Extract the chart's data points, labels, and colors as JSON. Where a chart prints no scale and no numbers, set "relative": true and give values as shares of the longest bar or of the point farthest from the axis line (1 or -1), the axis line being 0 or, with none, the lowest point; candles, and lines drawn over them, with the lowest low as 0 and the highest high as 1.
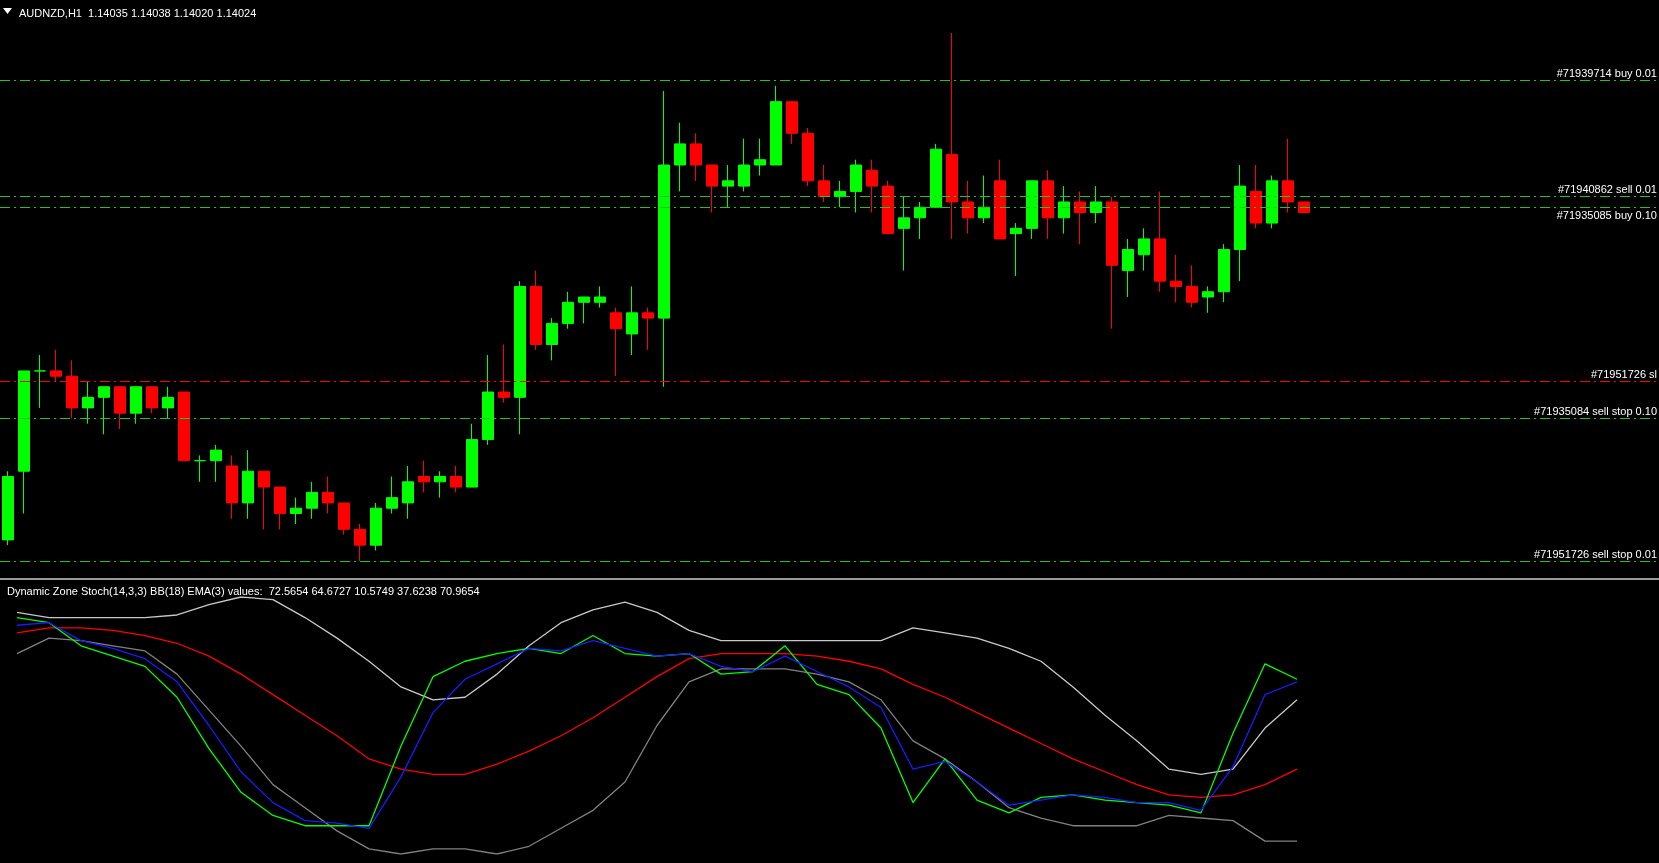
{
  "chart_data": [
    {
      "type": "candlestick",
      "title": "AUDNZD,H1  1.14035 1.14038 1.14020 1.14024",
      "relative": true,
      "categories": [
        null,
        null,
        null,
        null,
        null,
        null,
        null,
        null,
        null,
        null,
        null,
        null,
        null,
        null,
        null,
        null,
        null,
        null,
        null,
        null,
        null,
        null,
        null,
        null,
        null,
        null,
        null,
        null,
        null,
        null,
        null,
        null,
        null,
        null,
        null,
        null,
        null,
        null,
        null,
        null,
        null,
        null,
        null,
        null,
        null,
        null,
        null,
        null,
        null,
        null,
        null,
        null,
        null,
        null,
        null,
        null,
        null,
        null,
        null,
        null,
        null,
        null,
        null,
        null,
        null,
        null,
        null,
        null,
        null,
        null,
        null,
        null,
        null,
        null,
        null,
        null,
        null,
        null,
        null,
        null,
        null,
        null
      ],
      "ohlc": [
        [
          0.04,
          0.17,
          0.03,
          0.16
        ],
        [
          0.17,
          0.36,
          0.09,
          0.36
        ],
        [
          0.36,
          0.39,
          0.29,
          0.36
        ],
        [
          0.36,
          0.4,
          0.34,
          0.35
        ],
        [
          0.35,
          0.38,
          0.27,
          0.29
        ],
        [
          0.29,
          0.34,
          0.26,
          0.31
        ],
        [
          0.31,
          0.33,
          0.24,
          0.33
        ],
        [
          0.33,
          0.33,
          0.25,
          0.28
        ],
        [
          0.28,
          0.33,
          0.26,
          0.33
        ],
        [
          0.33,
          0.33,
          0.28,
          0.29
        ],
        [
          0.29,
          0.33,
          0.27,
          0.31
        ],
        [
          0.32,
          0.32,
          0.19,
          0.19
        ],
        [
          0.19,
          0.2,
          0.15,
          0.19
        ],
        [
          0.19,
          0.22,
          0.15,
          0.21
        ],
        [
          0.18,
          0.2,
          0.08,
          0.11
        ],
        [
          0.11,
          0.21,
          0.08,
          0.17
        ],
        [
          0.17,
          0.17,
          0.06,
          0.14
        ],
        [
          0.14,
          0.14,
          0.06,
          0.09
        ],
        [
          0.09,
          0.12,
          0.07,
          0.1
        ],
        [
          0.1,
          0.15,
          0.08,
          0.13
        ],
        [
          0.13,
          0.16,
          0.09,
          0.11
        ],
        [
          0.11,
          0.11,
          0.05,
          0.06
        ],
        [
          0.06,
          0.07,
          0.0,
          0.03
        ],
        [
          0.03,
          0.11,
          0.02,
          0.1
        ],
        [
          0.1,
          0.16,
          0.09,
          0.12
        ],
        [
          0.11,
          0.18,
          0.08,
          0.15
        ],
        [
          0.16,
          0.19,
          0.13,
          0.15
        ],
        [
          0.15,
          0.17,
          0.12,
          0.16
        ],
        [
          0.16,
          0.18,
          0.13,
          0.14
        ],
        [
          0.14,
          0.26,
          0.14,
          0.23
        ],
        [
          0.23,
          0.39,
          0.22,
          0.32
        ],
        [
          0.32,
          0.41,
          0.3,
          0.31
        ],
        [
          0.31,
          0.53,
          0.24,
          0.52
        ],
        [
          0.52,
          0.55,
          0.4,
          0.41
        ],
        [
          0.41,
          0.46,
          0.38,
          0.45
        ],
        [
          0.45,
          0.51,
          0.44,
          0.49
        ],
        [
          0.49,
          0.5,
          0.45,
          0.5
        ],
        [
          0.49,
          0.52,
          0.48,
          0.5
        ],
        [
          0.47,
          0.48,
          0.35,
          0.44
        ],
        [
          0.43,
          0.52,
          0.39,
          0.47
        ],
        [
          0.47,
          0.48,
          0.4,
          0.46
        ],
        [
          0.46,
          0.89,
          0.33,
          0.75
        ],
        [
          0.75,
          0.83,
          0.7,
          0.79
        ],
        [
          0.79,
          0.81,
          0.72,
          0.75
        ],
        [
          0.75,
          0.75,
          0.66,
          0.71
        ],
        [
          0.71,
          0.75,
          0.67,
          0.72
        ],
        [
          0.71,
          0.8,
          0.7,
          0.75
        ],
        [
          0.75,
          0.8,
          0.73,
          0.76
        ],
        [
          0.75,
          0.9,
          0.75,
          0.87
        ],
        [
          0.87,
          0.87,
          0.79,
          0.81
        ],
        [
          0.81,
          0.82,
          0.71,
          0.72
        ],
        [
          0.72,
          0.75,
          0.68,
          0.69
        ],
        [
          0.69,
          0.72,
          0.67,
          0.7
        ],
        [
          0.7,
          0.76,
          0.66,
          0.75
        ],
        [
          0.74,
          0.76,
          0.66,
          0.71
        ],
        [
          0.71,
          0.72,
          0.62,
          0.62
        ],
        [
          0.63,
          0.69,
          0.55,
          0.65
        ],
        [
          0.65,
          0.68,
          0.61,
          0.67
        ],
        [
          0.67,
          0.79,
          0.67,
          0.78
        ],
        [
          0.77,
          1.0,
          0.61,
          0.68
        ],
        [
          0.68,
          0.72,
          0.62,
          0.65
        ],
        [
          0.65,
          0.73,
          0.64,
          0.67
        ],
        [
          0.72,
          0.76,
          0.61,
          0.61
        ],
        [
          0.62,
          0.64,
          0.54,
          0.63
        ],
        [
          0.63,
          0.72,
          0.61,
          0.72
        ],
        [
          0.72,
          0.74,
          0.61,
          0.65
        ],
        [
          0.65,
          0.71,
          0.62,
          0.68
        ],
        [
          0.68,
          0.7,
          0.6,
          0.66
        ],
        [
          0.66,
          0.71,
          0.64,
          0.68
        ],
        [
          0.68,
          0.69,
          0.44,
          0.56
        ],
        [
          0.55,
          0.61,
          0.5,
          0.59
        ],
        [
          0.58,
          0.63,
          0.55,
          0.61
        ],
        [
          0.61,
          0.7,
          0.51,
          0.53
        ],
        [
          0.53,
          0.58,
          0.49,
          0.52
        ],
        [
          0.52,
          0.56,
          0.48,
          0.49
        ],
        [
          0.5,
          0.52,
          0.47,
          0.51
        ],
        [
          0.51,
          0.6,
          0.49,
          0.59
        ],
        [
          0.59,
          0.75,
          0.53,
          0.71
        ],
        [
          0.7,
          0.75,
          0.63,
          0.64
        ],
        [
          0.64,
          0.73,
          0.63,
          0.72
        ],
        [
          0.72,
          0.8,
          0.66,
          0.68
        ],
        [
          0.68,
          0.68,
          0.66,
          0.66
        ]
      ],
      "colors": [
        "#00ff00",
        "#00ff00",
        "#00ff00",
        "#ff0000",
        "#ff0000",
        "#00ff00",
        "#00ff00",
        "#ff0000",
        "#00ff00",
        "#ff0000",
        "#00ff00",
        "#ff0000",
        "#00ff00",
        "#00ff00",
        "#ff0000",
        "#00ff00",
        "#ff0000",
        "#ff0000",
        "#00ff00",
        "#00ff00",
        "#ff0000",
        "#ff0000",
        "#ff0000",
        "#00ff00",
        "#00ff00",
        "#00ff00",
        "#ff0000",
        "#00ff00",
        "#ff0000",
        "#00ff00",
        "#00ff00",
        "#ff0000",
        "#00ff00",
        "#ff0000",
        "#00ff00",
        "#00ff00",
        "#00ff00",
        "#00ff00",
        "#ff0000",
        "#00ff00",
        "#ff0000",
        "#00ff00",
        "#00ff00",
        "#ff0000",
        "#ff0000",
        "#00ff00",
        "#00ff00",
        "#00ff00",
        "#00ff00",
        "#ff0000",
        "#ff0000",
        "#ff0000",
        "#00ff00",
        "#00ff00",
        "#ff0000",
        "#ff0000",
        "#00ff00",
        "#00ff00",
        "#00ff00",
        "#ff0000",
        "#ff0000",
        "#00ff00",
        "#ff0000",
        "#00ff00",
        "#00ff00",
        "#ff0000",
        "#00ff00",
        "#ff0000",
        "#00ff00",
        "#ff0000",
        "#00ff00",
        "#00ff00",
        "#ff0000",
        "#ff0000",
        "#ff0000",
        "#00ff00",
        "#00ff00",
        "#00ff00",
        "#ff0000",
        "#00ff00",
        "#ff0000",
        "#ff0000"
      ],
      "ref_lines": [
        {
          "axis": "y",
          "value": 0.91,
          "label": "#71939714 buy 0.01",
          "color": "#22c322",
          "line_style": "dashed"
        },
        {
          "axis": "y",
          "value": 0.69,
          "label": "#71940862 sell 0.01",
          "color": "#22c322",
          "line_style": "dashed"
        },
        {
          "axis": "y",
          "value": 0.67,
          "label": "#71935085 buy 0.10",
          "color": "#22c322",
          "line_style": "dashed"
        },
        {
          "axis": "y",
          "value": 0.34,
          "label": "#71951726 sl",
          "color": "#ff0000",
          "line_style": "dashed"
        },
        {
          "axis": "y",
          "value": 0.27,
          "label": "#71935084 sell stop 0.10",
          "color": "#22c322",
          "line_style": "dashed"
        },
        {
          "axis": "y",
          "value": 0.0,
          "label": "#71951726 sell stop 0.01",
          "color": "#22c322",
          "line_style": "dashed"
        }
      ]
    },
    {
      "type": "line",
      "title": "Dynamic Zone Stoch(14,3,3) BB(18) EMA(3) values:  72.5654 64.6727 10.5749 37.6238 70.9654",
      "relative": true,
      "categories": [
        null,
        null,
        null,
        null,
        null,
        null,
        null,
        null,
        null,
        null,
        null,
        null,
        null,
        null,
        null,
        null,
        null,
        null,
        null,
        null,
        null,
        null,
        null,
        null,
        null,
        null,
        null,
        null,
        null,
        null,
        null,
        null,
        null,
        null,
        null,
        null,
        null,
        null,
        null,
        null,
        null
      ],
      "series": [
        {
          "color": "#c8c8c8",
          "values": [
            0.94,
            0.92,
            0.92,
            0.92,
            0.92,
            0.93,
            0.97,
            1.0,
            0.99,
            0.92,
            0.84,
            0.75,
            0.65,
            0.6,
            0.61,
            0.7,
            0.81,
            0.9,
            0.95,
            0.98,
            0.94,
            0.87,
            0.83,
            0.83,
            0.83,
            0.83,
            0.83,
            0.83,
            0.88,
            0.86,
            0.84,
            0.8,
            0.75,
            0.65,
            0.54,
            0.44,
            0.33,
            0.31,
            0.33,
            0.49,
            0.6
          ]
        },
        {
          "color": "#808080",
          "values": [
            0.78,
            0.84,
            0.83,
            0.81,
            0.79,
            0.7,
            0.56,
            0.42,
            0.27,
            0.18,
            0.09,
            0.02,
            0.0,
            0.02,
            0.02,
            0.0,
            0.03,
            0.1,
            0.17,
            0.28,
            0.5,
            0.67,
            0.72,
            0.72,
            0.72,
            0.7,
            0.67,
            0.6,
            0.44,
            0.37,
            0.28,
            0.18,
            0.14,
            0.11,
            0.11,
            0.11,
            0.15,
            0.14,
            0.13,
            0.05,
            0.05
          ]
        },
        {
          "color": "#ff0000",
          "values": [
            0.86,
            0.88,
            0.88,
            0.87,
            0.85,
            0.82,
            0.77,
            0.7,
            0.62,
            0.54,
            0.46,
            0.37,
            0.33,
            0.31,
            0.31,
            0.35,
            0.4,
            0.46,
            0.53,
            0.61,
            0.69,
            0.76,
            0.78,
            0.78,
            0.78,
            0.77,
            0.75,
            0.72,
            0.66,
            0.61,
            0.55,
            0.49,
            0.43,
            0.37,
            0.32,
            0.27,
            0.23,
            0.22,
            0.23,
            0.27,
            0.33
          ]
        },
        {
          "color": "#00ff00",
          "values": [
            0.92,
            0.9,
            0.81,
            0.77,
            0.73,
            0.61,
            0.41,
            0.24,
            0.15,
            0.11,
            0.11,
            0.11,
            0.42,
            0.69,
            0.75,
            0.78,
            0.8,
            0.78,
            0.85,
            0.78,
            0.77,
            0.78,
            0.7,
            0.71,
            0.81,
            0.66,
            0.62,
            0.49,
            0.2,
            0.37,
            0.21,
            0.16,
            0.22,
            0.23,
            0.21,
            0.2,
            0.19,
            0.16,
            0.47,
            0.74,
            0.68
          ]
        },
        {
          "color": "#1a1aff",
          "values": [
            0.89,
            0.9,
            0.83,
            0.8,
            0.76,
            0.67,
            0.5,
            0.32,
            0.2,
            0.13,
            0.12,
            0.1,
            0.3,
            0.55,
            0.68,
            0.74,
            0.8,
            0.79,
            0.83,
            0.8,
            0.77,
            0.78,
            0.73,
            0.71,
            0.77,
            0.71,
            0.65,
            0.57,
            0.33,
            0.36,
            0.28,
            0.19,
            0.21,
            0.23,
            0.22,
            0.2,
            0.2,
            0.17,
            0.34,
            0.62,
            0.67
          ]
        }
      ]
    }
  ]
}
